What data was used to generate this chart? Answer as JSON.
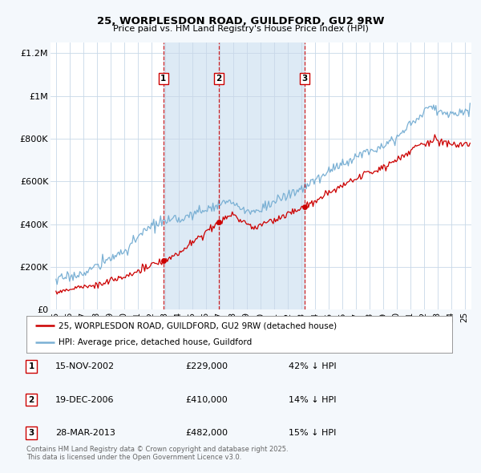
{
  "title": "25, WORPLESDON ROAD, GUILDFORD, GU2 9RW",
  "subtitle": "Price paid vs. HM Land Registry's House Price Index (HPI)",
  "background_color": "#f4f8fc",
  "plot_bg_color": "#ffffff",
  "red_line_color": "#cc0000",
  "blue_line_color": "#7ab0d4",
  "grid_color": "#c8d8e8",
  "shade_color": "#ddeaf5",
  "vline_color": "#cc0000",
  "purchases": [
    {
      "label": "1",
      "date_num": 2002.88,
      "price": 229000,
      "note": "42% ↓ HPI",
      "date_str": "15-NOV-2002"
    },
    {
      "label": "2",
      "date_num": 2006.96,
      "price": 410000,
      "note": "14% ↓ HPI",
      "date_str": "19-DEC-2006"
    },
    {
      "label": "3",
      "date_num": 2013.24,
      "price": 482000,
      "note": "15% ↓ HPI",
      "date_str": "28-MAR-2013"
    }
  ],
  "ylim": [
    0,
    1250000
  ],
  "xlim": [
    1994.6,
    2025.5
  ],
  "yticks": [
    0,
    200000,
    400000,
    600000,
    800000,
    1000000,
    1200000
  ],
  "ytick_labels": [
    "£0",
    "£200K",
    "£400K",
    "£600K",
    "£800K",
    "£1M",
    "£1.2M"
  ],
  "xtick_years": [
    1995,
    1996,
    1997,
    1998,
    1999,
    2000,
    2001,
    2002,
    2003,
    2004,
    2005,
    2006,
    2007,
    2008,
    2009,
    2010,
    2011,
    2012,
    2013,
    2014,
    2015,
    2016,
    2017,
    2018,
    2019,
    2020,
    2021,
    2022,
    2023,
    2024,
    2025
  ],
  "legend_items": [
    {
      "label": "25, WORPLESDON ROAD, GUILDFORD, GU2 9RW (detached house)",
      "color": "#cc0000"
    },
    {
      "label": "HPI: Average price, detached house, Guildford",
      "color": "#7ab0d4"
    }
  ],
  "footer": "Contains HM Land Registry data © Crown copyright and database right 2025.\nThis data is licensed under the Open Government Licence v3.0."
}
